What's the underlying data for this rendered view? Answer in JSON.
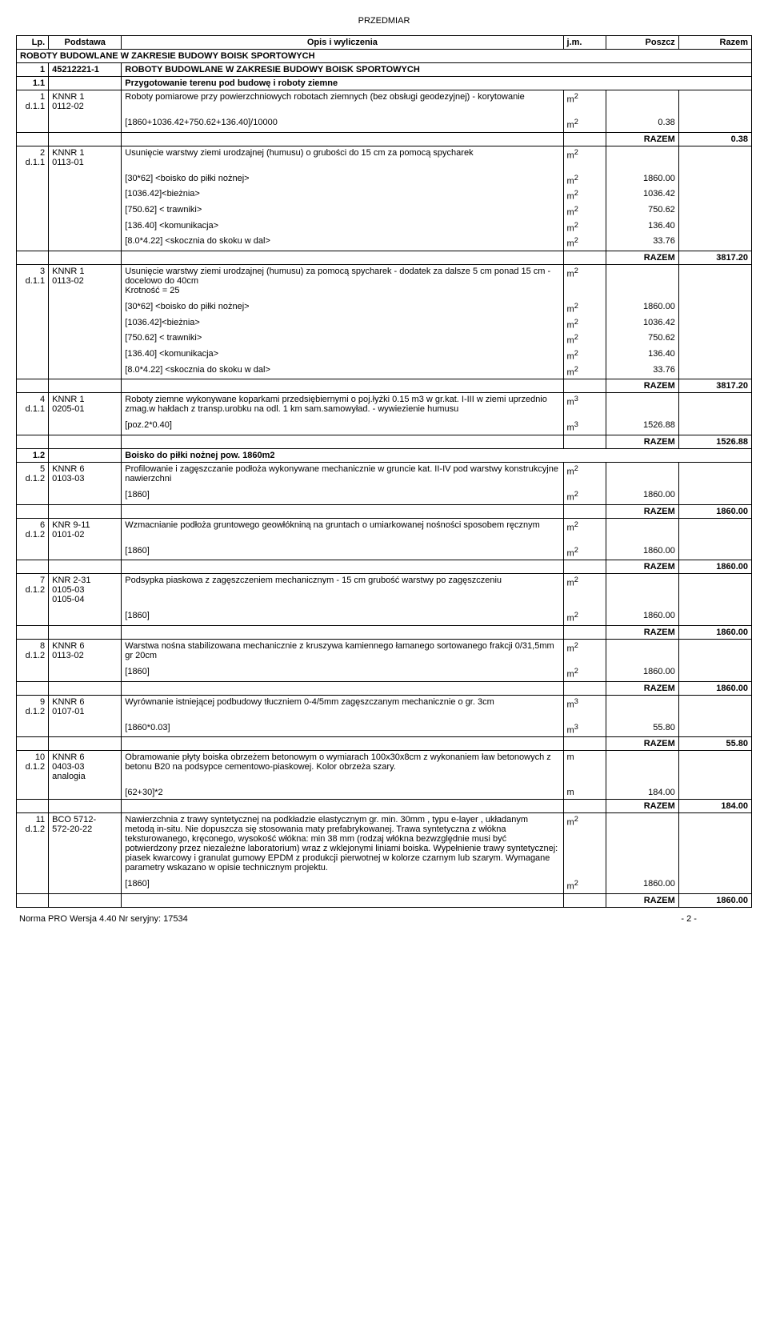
{
  "docTitle": "PRZEDMIAR",
  "headers": {
    "lp": "Lp.",
    "basis": "Podstawa",
    "desc": "Opis i wyliczenia",
    "unit": "j.m.",
    "qty": "Poszcz",
    "total": "Razem"
  },
  "mainSection": "ROBOTY BUDOWLANE W ZAKRESIE BUDOWY BOISK SPORTOWYCH",
  "section1": {
    "lp": "1",
    "basis": "45212221-1",
    "desc": "ROBOTY BUDOWLANE W ZAKRESIE BUDOWY BOISK SPORTOWYCH"
  },
  "section11": {
    "lp": "1.1",
    "desc": "Przygotowanie terenu pod budowę i roboty ziemne"
  },
  "item1": {
    "lp": "1",
    "basis": "KNNR 1\n0112-02",
    "dref": "d.1.1",
    "desc": "Roboty pomiarowe przy powierzchniowych robotach ziemnych (bez obsługi geodezyjnej) - korytowanie",
    "unit": "m2",
    "rows": [
      {
        "desc": "[1860+1036.42+750.62+136.40]/10000",
        "unit": "m2",
        "qty": "0.38"
      }
    ],
    "razem": "0.38"
  },
  "item2": {
    "lp": "2",
    "basis": "KNNR 1\n0113-01",
    "dref": "d.1.1",
    "desc": "Usunięcie warstwy ziemi urodzajnej (humusu) o grubości do 15 cm za pomocą spycharek",
    "unit": "m2",
    "rows": [
      {
        "desc": " [30*62] <boisko do piłki nożnej>",
        "unit": "m2",
        "qty": "1860.00"
      },
      {
        "desc": "[1036.42]<bieżnia>",
        "unit": "m2",
        "qty": "1036.42"
      },
      {
        "desc": "[750.62] < trawniki>",
        "unit": "m2",
        "qty": "750.62"
      },
      {
        "desc": "[136.40] <komunikacja>",
        "unit": "m2",
        "qty": "136.40"
      },
      {
        "desc": "[8.0*4.22] <skocznia do skoku w dal>",
        "unit": "m2",
        "qty": "33.76"
      }
    ],
    "razem": "3817.20"
  },
  "item3": {
    "lp": "3",
    "basis": "KNNR 1\n0113-02",
    "dref": "d.1.1",
    "desc": "Usunięcie warstwy ziemi urodzajnej (humusu) za pomocą spycharek - dodatek za dalsze 5 cm ponad 15 cm - docelowo do 40cm\nKrotność = 25",
    "unit": "m2",
    "rows": [
      {
        "desc": " [30*62] <boisko do piłki nożnej>",
        "unit": "m2",
        "qty": "1860.00"
      },
      {
        "desc": "[1036.42]<bieżnia>",
        "unit": "m2",
        "qty": "1036.42"
      },
      {
        "desc": "[750.62] < trawniki>",
        "unit": "m2",
        "qty": "750.62"
      },
      {
        "desc": "[136.40] <komunikacja>",
        "unit": "m2",
        "qty": "136.40"
      },
      {
        "desc": "[8.0*4.22] <skocznia do skoku w dal>",
        "unit": "m2",
        "qty": "33.76"
      }
    ],
    "razem": "3817.20"
  },
  "item4": {
    "lp": "4",
    "basis": "KNNR 1\n0205-01",
    "dref": "d.1.1",
    "desc": "Roboty ziemne wykonywane koparkami przedsiębiernymi o poj.łyżki 0.15 m3 w gr.kat. I-III w ziemi uprzednio zmag.w hałdach z transp.urobku na odl. 1 km sam.samowyład. - wywiezienie humusu",
    "unit": "m3",
    "rows": [
      {
        "desc": "[poz.2*0.40]",
        "unit": "m3",
        "qty": "1526.88"
      }
    ],
    "razem": "1526.88"
  },
  "section12": {
    "lp": "1.2",
    "desc": "Boisko do piłki nożnej pow. 1860m2"
  },
  "item5": {
    "lp": "5",
    "basis": "KNNR 6\n0103-03",
    "dref": "d.1.2",
    "desc": "Profilowanie i zagęszczanie podłoża wykonywane mechanicznie w gruncie kat. II-IV pod warstwy konstrukcyjne nawierzchni",
    "unit": "m2",
    "rows": [
      {
        "desc": " [1860]",
        "unit": "m2",
        "qty": "1860.00"
      }
    ],
    "razem": "1860.00"
  },
  "item6": {
    "lp": "6",
    "basis": "KNR 9-11\n0101-02",
    "dref": "d.1.2",
    "desc": "Wzmacnianie podłoża gruntowego geowłókniną na gruntach o umiarkowanej nośności sposobem ręcznym",
    "unit": "m2",
    "rows": [
      {
        "desc": "[1860]",
        "unit": "m2",
        "qty": "1860.00"
      }
    ],
    "razem": "1860.00"
  },
  "item7": {
    "lp": "7",
    "basis": "KNR 2-31\n0105-03\n0105-04",
    "dref": "d.1.2",
    "desc": "Podsypka piaskowa z zagęszczeniem mechanicznym - 15 cm grubość warstwy po zagęszczeniu",
    "unit": "m2",
    "rows": [
      {
        "desc": "[1860]",
        "unit": "m2",
        "qty": "1860.00"
      }
    ],
    "razem": "1860.00"
  },
  "item8": {
    "lp": "8",
    "basis": "KNNR 6\n0113-02",
    "dref": "d.1.2",
    "desc": "Warstwa nośna stabilizowana mechanicznie z kruszywa kamiennego łamanego  sortowanego  frakcji 0/31,5mm  gr 20cm",
    "unit": "m2",
    "rows": [
      {
        "desc": "[1860]",
        "unit": "m2",
        "qty": "1860.00"
      }
    ],
    "razem": "1860.00"
  },
  "item9": {
    "lp": "9",
    "basis": "KNNR 6\n0107-01",
    "dref": "d.1.2",
    "desc": "Wyrównanie istniejącej podbudowy tłuczniem 0-4/5mm zagęszczanym mechanicznie o gr. 3cm",
    "unit": "m3",
    "rows": [
      {
        "desc": "[1860*0.03]",
        "unit": "m3",
        "qty": "55.80"
      }
    ],
    "razem": "55.80"
  },
  "item10": {
    "lp": "10",
    "basis": "KNNR 6\n0403-03\nanalogia",
    "dref": "d.1.2",
    "desc": "Obramowanie płyty boiska obrzeżem betonowym o wymiarach 100x30x8cm z wykonaniem ław betonowych z betonu B20 na podsypce cementowo-piaskowej.  Kolor obrzeża szary.",
    "unit": "m",
    "rows": [
      {
        "desc": "[62+30]*2",
        "unit": "m",
        "qty": "184.00"
      }
    ],
    "razem": "184.00"
  },
  "item11": {
    "lp": "11",
    "basis": "BCO 5712-\n572-20-22",
    "dref": "d.1.2",
    "desc": "Nawierzchnia z trawy syntetycznej na podkładzie elastycznym gr. min. 30mm , typu e-layer , układanym metodą in-situ. Nie dopuszcza się stosowania maty prefabrykowanej. Trawa syntetyczna z włókna teksturowanego, kręconego, wysokość włókna: min 38 mm (rodzaj włókna bezwzględnie musi być potwierdzony przez niezależne laboratorium) wraz z wklejonymi liniami boiska. Wypełnienie trawy syntetycznej: piasek kwarcowy i granulat gumowy EPDM z produkcji pierwotnej w kolorze czarnym lub szarym. Wymagane parametry wskazano w opisie technicznym projektu.",
    "unit": "m2",
    "rows": [
      {
        "desc": "[1860]",
        "unit": "m2",
        "qty": "1860.00"
      }
    ],
    "razem": "1860.00"
  },
  "razemLabel": "RAZEM",
  "footer": {
    "left": "Norma PRO Wersja 4.40 Nr seryjny: 17534",
    "page": "- 2 -"
  }
}
